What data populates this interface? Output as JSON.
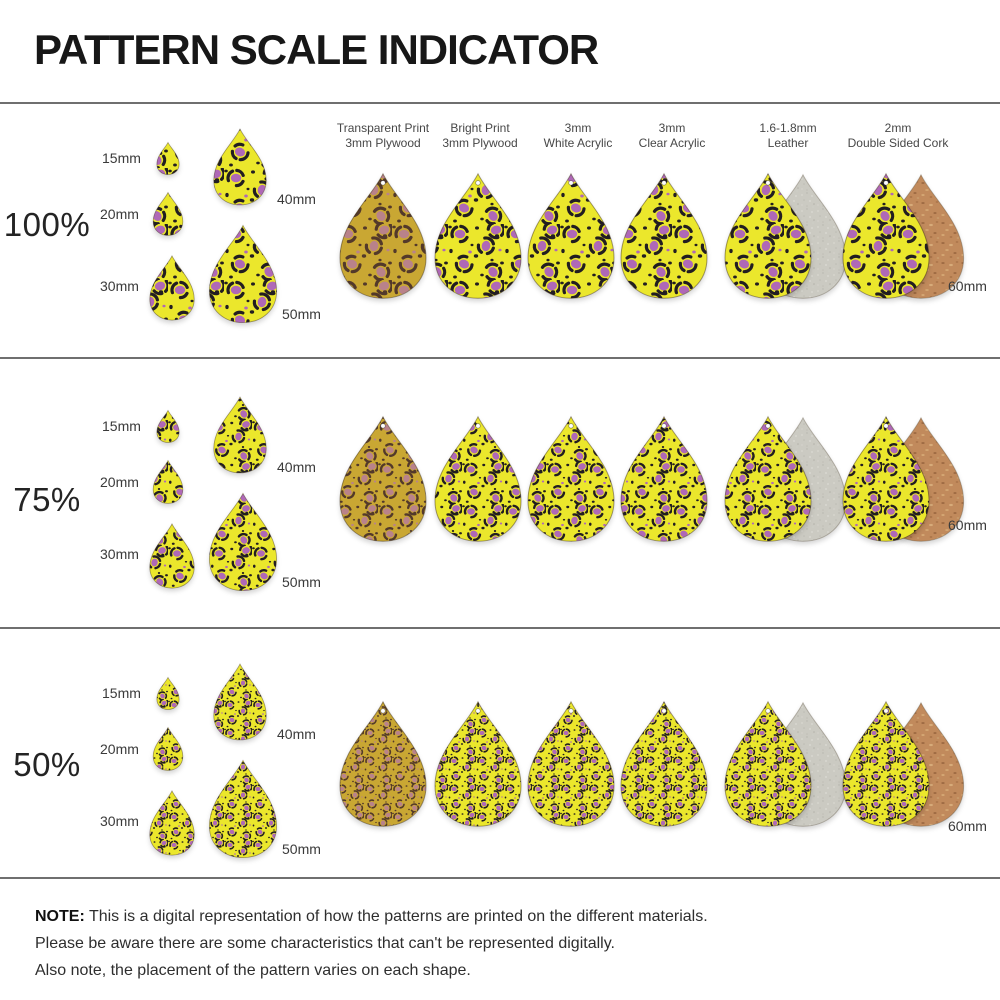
{
  "title": "PATTERN SCALE INDICATOR",
  "rows": [
    {
      "scale_label": "100%"
    },
    {
      "scale_label": "75%"
    },
    {
      "scale_label": "50%"
    }
  ],
  "size_labels": {
    "s15": "15mm",
    "s20": "20mm",
    "s30": "30mm",
    "s40": "40mm",
    "s50": "50mm",
    "s60": "60mm"
  },
  "materials": [
    {
      "label": [
        "Transparent Print",
        "3mm Plywood"
      ]
    },
    {
      "label": [
        "Bright Print",
        "3mm Plywood"
      ]
    },
    {
      "label": [
        "3mm",
        "White Acrylic"
      ]
    },
    {
      "label": [
        "3mm",
        "Clear Acrylic"
      ]
    },
    {
      "label": [
        "1.6-1.8mm",
        "Leather"
      ]
    },
    {
      "label": [
        "2mm",
        "Double Sided Cork"
      ]
    }
  ],
  "note": {
    "prefix": "NOTE:",
    "line1": "This is a digital representation of how the patterns are printed on the different materials.",
    "line2": "Please be aware there are some characteristics that can't be represented digitally.",
    "line3": "Also note, the placement of the pattern varies on each shape."
  },
  "pattern_colors": {
    "bright": {
      "bg": "#ebe72c",
      "spot": "#221d21",
      "center": "#af68b7"
    },
    "transparent_plywood": {
      "bg": "#c9a733",
      "spot": "#53392a",
      "center": "#b9828a"
    },
    "leather_back": "#cbcac2",
    "cork_back": "#c18a5c"
  }
}
